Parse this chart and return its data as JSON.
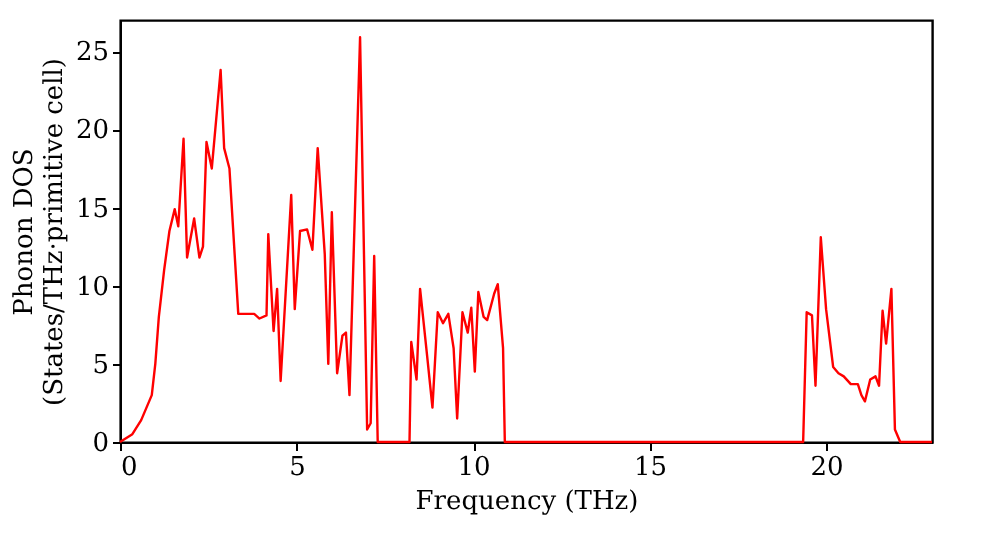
{
  "chart_data": {
    "type": "line",
    "xlabel": "Frequency (THz)",
    "ylabel": "Phonon DOS\n(States/THz·primitive cell)",
    "xlim": [
      0,
      23
    ],
    "ylim": [
      0,
      27
    ],
    "xticks": [
      0,
      5,
      10,
      15,
      20
    ],
    "yticks": [
      0,
      5,
      10,
      15,
      20,
      25
    ],
    "grid": false,
    "marker": "none",
    "line_style": "solid",
    "series": [
      {
        "color": "#ff0000",
        "x": [
          0,
          0.35,
          0.6,
          0.9,
          1.0,
          1.1,
          1.25,
          1.4,
          1.55,
          1.65,
          1.8,
          1.9,
          2.1,
          2.25,
          2.35,
          2.45,
          2.6,
          2.85,
          2.95,
          3.1,
          3.35,
          3.8,
          3.95,
          4.15,
          4.2,
          4.35,
          4.45,
          4.55,
          4.85,
          4.95,
          5.1,
          5.3,
          5.45,
          5.6,
          5.8,
          5.9,
          6.0,
          6.15,
          6.3,
          6.4,
          6.5,
          6.8,
          7.0,
          7.1,
          7.2,
          7.3,
          8.2,
          8.25,
          8.4,
          8.5,
          8.7,
          8.85,
          9.0,
          9.15,
          9.3,
          9.45,
          9.55,
          9.7,
          9.85,
          9.95,
          10.05,
          10.15,
          10.3,
          10.4,
          10.6,
          10.7,
          10.85,
          10.9,
          19.35,
          19.45,
          19.6,
          19.7,
          19.85,
          20.0,
          20.2,
          20.35,
          20.5,
          20.7,
          20.9,
          21.0,
          21.1,
          21.25,
          21.4,
          21.5,
          21.6,
          21.7,
          21.85,
          21.95,
          22.1,
          23.0
        ],
        "values": [
          0,
          0.5,
          1.4,
          3.0,
          5.0,
          8.0,
          11.0,
          13.5,
          14.9,
          13.8,
          19.4,
          11.8,
          14.3,
          11.8,
          12.5,
          19.2,
          17.5,
          23.8,
          18.8,
          17.5,
          8.2,
          8.2,
          7.9,
          8.1,
          13.3,
          7.1,
          9.8,
          3.9,
          15.8,
          8.5,
          13.5,
          13.6,
          12.3,
          18.8,
          12.0,
          5.0,
          14.7,
          4.4,
          6.8,
          7.0,
          3.0,
          25.9,
          0.8,
          1.2,
          11.9,
          0,
          0,
          6.4,
          4.0,
          9.8,
          5.5,
          2.2,
          8.3,
          7.6,
          8.2,
          6.0,
          1.5,
          8.3,
          7.0,
          8.6,
          4.5,
          9.6,
          8.0,
          7.8,
          9.5,
          10.1,
          6.0,
          0,
          0,
          8.3,
          8.1,
          3.6,
          13.1,
          8.5,
          4.8,
          4.4,
          4.2,
          3.7,
          3.7,
          3.0,
          2.6,
          4.0,
          4.2,
          3.6,
          8.4,
          6.3,
          9.8,
          0.8,
          0,
          0
        ]
      }
    ]
  }
}
